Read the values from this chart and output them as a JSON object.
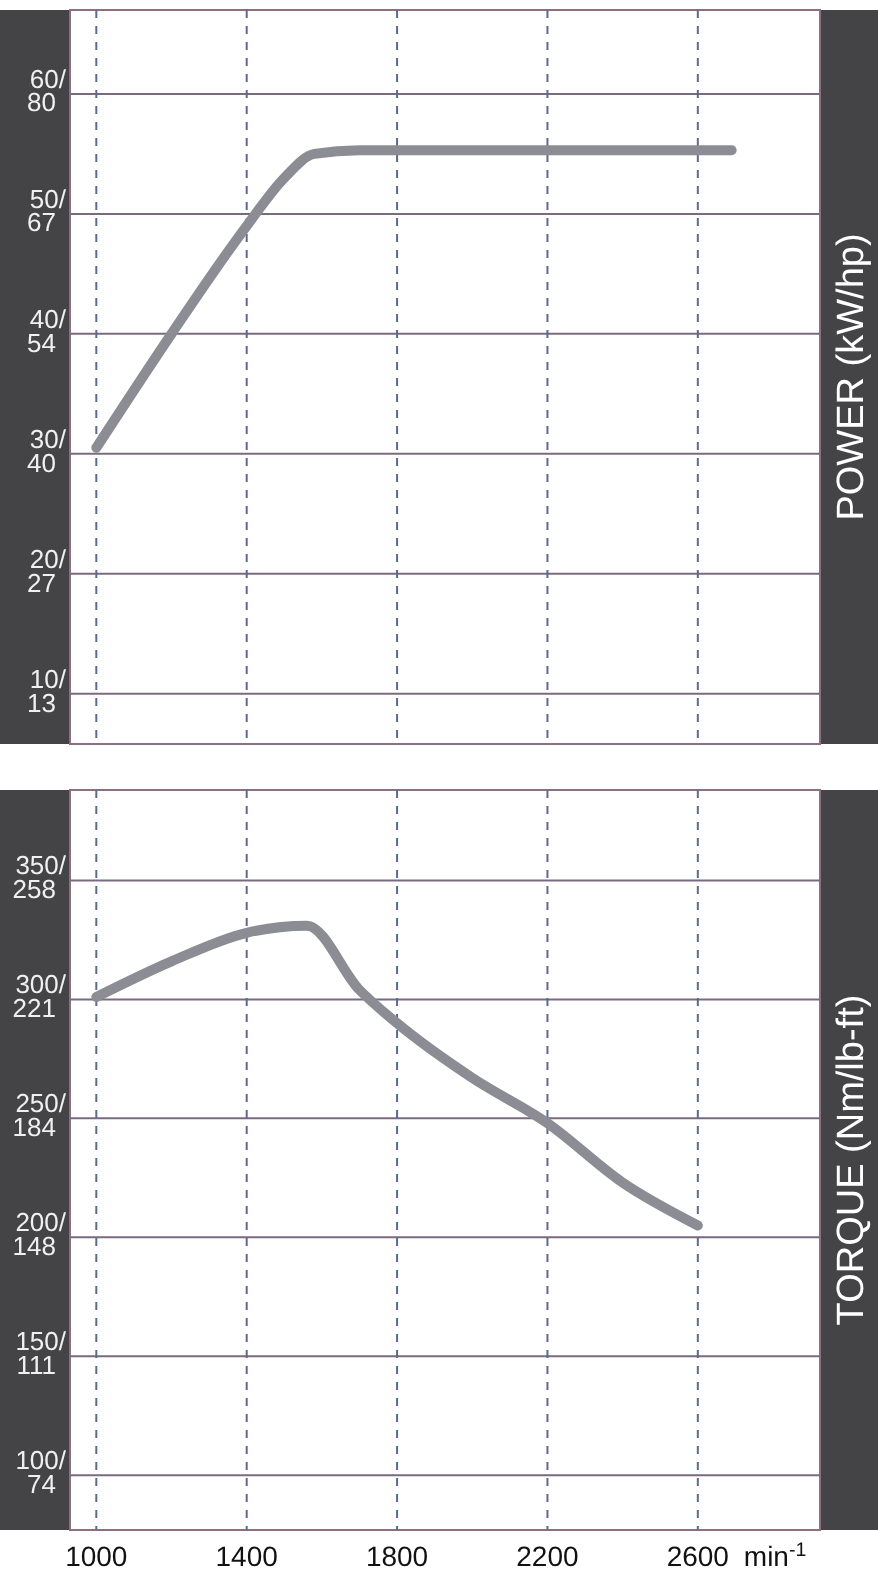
{
  "chart_data": [
    {
      "type": "line",
      "title": "POWER (kW/hp)",
      "x": [
        1000,
        1200,
        1400,
        1500,
        1580,
        1700,
        2690
      ],
      "series": [
        {
          "color": "#8c8c94",
          "values": [
            30.5,
            40,
            49,
            53,
            55,
            55.3,
            55.3
          ]
        }
      ],
      "xlim": [
        930,
        2925
      ],
      "ylim": [
        5.8,
        67
      ],
      "xticks": [
        1000,
        1400,
        1800,
        2200,
        2600
      ],
      "yticks": [
        {
          "value": 10,
          "label": "10/"
        },
        {
          "value": 20,
          "label": "20/"
        },
        {
          "value": 30,
          "label": "30/"
        },
        {
          "value": 40,
          "label": "40/"
        },
        {
          "value": 50,
          "label": "50/"
        },
        {
          "value": 60,
          "label": "60/"
        }
      ],
      "y2lim": [
        7.8,
        89.8
      ],
      "y2ticks": [
        {
          "value": 13.4,
          "label": "13"
        },
        {
          "value": 26.8,
          "label": "27"
        },
        {
          "value": 40.2,
          "label": "40"
        },
        {
          "value": 53.6,
          "label": "54"
        },
        {
          "value": 67.1,
          "label": "67"
        },
        {
          "value": 80.5,
          "label": "80"
        }
      ],
      "grid": true,
      "tick_labels": "y",
      "line_style": "solid",
      "marker": "none"
    },
    {
      "type": "line",
      "title": "TORQUE (Nm/lb-ft)",
      "xlabel": "min$^{-1}$",
      "x": [
        1000,
        1200,
        1400,
        1560,
        1700,
        1800,
        2000,
        2200,
        2400,
        2600
      ],
      "series": [
        {
          "color": "#8c8c94",
          "values": [
            301,
            316,
            328,
            331,
            304,
            290,
            267,
            248,
            223,
            205
          ]
        }
      ],
      "xlim": [
        930,
        2925
      ],
      "ylim": [
        77,
        388
      ],
      "xticks": [
        1000,
        1400,
        1800,
        2200,
        2600
      ],
      "yticks": [
        {
          "value": 100,
          "label": "100/"
        },
        {
          "value": 150,
          "label": "150/"
        },
        {
          "value": 200,
          "label": "200/"
        },
        {
          "value": 250,
          "label": "250/"
        },
        {
          "value": 300,
          "label": "300/"
        },
        {
          "value": 350,
          "label": "350/"
        }
      ],
      "y2lim": [
        56.8,
        286.2
      ],
      "y2ticks": [
        {
          "value": 73.8,
          "label": "74"
        },
        {
          "value": 110.6,
          "label": "111"
        },
        {
          "value": 147.5,
          "label": "148"
        },
        {
          "value": 184.4,
          "label": "184"
        },
        {
          "value": 221.3,
          "label": "221"
        },
        {
          "value": 258.2,
          "label": "258"
        }
      ],
      "grid": true,
      "line_style": "solid",
      "marker": "none"
    }
  ]
}
